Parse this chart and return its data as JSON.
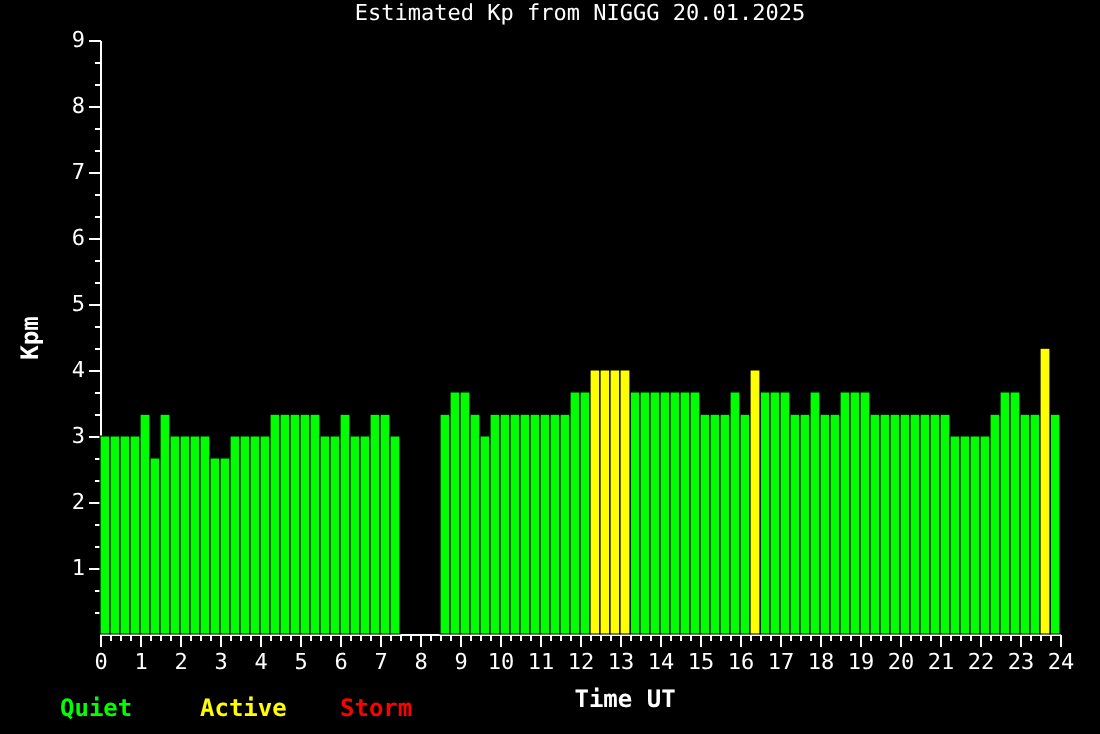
{
  "chart_data": {
    "type": "bar",
    "title": "Estimated Kp from NIGGG 20.01.2025",
    "xlabel": "Time UT",
    "ylabel": "Kpm",
    "x": [
      0,
      0.25,
      0.5,
      0.75,
      1,
      1.25,
      1.5,
      1.75,
      2,
      2.25,
      2.5,
      2.75,
      3,
      3.25,
      3.5,
      3.75,
      4,
      4.25,
      4.5,
      4.75,
      5,
      5.25,
      5.5,
      5.75,
      6,
      6.25,
      6.5,
      6.75,
      7,
      7.25,
      8.5,
      8.75,
      9,
      9.25,
      9.5,
      9.75,
      10,
      10.25,
      10.5,
      10.75,
      11,
      11.25,
      11.5,
      11.75,
      12,
      12.25,
      12.5,
      12.75,
      13,
      13.25,
      13.5,
      13.75,
      14,
      14.25,
      14.5,
      14.75,
      15,
      15.25,
      15.5,
      15.75,
      16,
      16.25,
      16.5,
      16.75,
      17,
      17.25,
      17.5,
      17.75,
      18,
      18.25,
      18.5,
      18.75,
      19,
      19.25,
      19.5,
      19.75,
      20,
      20.25,
      20.5,
      20.75,
      21,
      21.25,
      21.5,
      21.75,
      22,
      22.25,
      22.5,
      22.75,
      23,
      23.25,
      23.5,
      23.75
    ],
    "series": [
      {
        "name": "Quiet",
        "color": "#00ff00",
        "values": [
          3,
          3,
          3,
          3,
          3.33,
          2.67,
          3.33,
          3,
          3,
          3,
          3,
          2.67,
          2.67,
          3,
          3,
          3,
          3,
          3.33,
          3.33,
          3.33,
          3.33,
          3.33,
          3,
          3,
          3.33,
          3,
          3,
          3.33,
          3.33,
          3,
          3.33,
          3.67,
          3.67,
          3.33,
          3,
          3.33,
          3.33,
          3.33,
          3.33,
          3.33,
          3.33,
          3.33,
          3.33,
          3.67,
          3.67,
          null,
          null,
          null,
          null,
          3.67,
          3.67,
          3.67,
          3.67,
          3.67,
          3.67,
          3.67,
          3.33,
          3.33,
          3.33,
          3.67,
          3.33,
          null,
          3.67,
          3.67,
          3.67,
          3.33,
          3.33,
          3.67,
          3.33,
          3.33,
          3.67,
          3.67,
          3.67,
          3.33,
          3.33,
          3.33,
          3.33,
          3.33,
          3.33,
          3.33,
          3.33,
          3,
          3,
          3,
          3,
          3.33,
          3.67,
          3.67,
          3.33,
          3.33,
          null,
          3.33
        ]
      },
      {
        "name": "Active",
        "color": "#ffff00",
        "values": [
          null,
          null,
          null,
          null,
          null,
          null,
          null,
          null,
          null,
          null,
          null,
          null,
          null,
          null,
          null,
          null,
          null,
          null,
          null,
          null,
          null,
          null,
          null,
          null,
          null,
          null,
          null,
          null,
          null,
          null,
          null,
          null,
          null,
          null,
          null,
          null,
          null,
          null,
          null,
          null,
          null,
          null,
          null,
          null,
          null,
          4,
          4,
          4,
          4,
          null,
          null,
          null,
          null,
          null,
          null,
          null,
          null,
          null,
          null,
          null,
          null,
          4,
          null,
          null,
          null,
          null,
          null,
          null,
          null,
          null,
          null,
          null,
          null,
          null,
          null,
          null,
          null,
          null,
          null,
          null,
          null,
          null,
          null,
          null,
          null,
          null,
          null,
          null,
          null,
          null,
          4.33,
          null
        ]
      },
      {
        "name": "Storm",
        "color": "#ff0000",
        "values": [
          null,
          null,
          null,
          null,
          null,
          null,
          null,
          null,
          null,
          null,
          null,
          null,
          null,
          null,
          null,
          null,
          null,
          null,
          null,
          null,
          null,
          null,
          null,
          null,
          null,
          null,
          null,
          null,
          null,
          null,
          null,
          null,
          null,
          null,
          null,
          null,
          null,
          null,
          null,
          null,
          null,
          null,
          null,
          null,
          null,
          null,
          null,
          null,
          null,
          null,
          null,
          null,
          null,
          null,
          null,
          null,
          null,
          null,
          null,
          null,
          null,
          null,
          null,
          null,
          null,
          null,
          null,
          null,
          null,
          null,
          null,
          null,
          null,
          null,
          null,
          null,
          null,
          null,
          null,
          null,
          null,
          null,
          null,
          null,
          null,
          null,
          null,
          null,
          null,
          null,
          null,
          null
        ]
      }
    ],
    "xlim": [
      0,
      24
    ],
    "ylim": [
      0,
      9
    ],
    "xticks": [
      0,
      {
        "value": 0.25,
        "label": null
      },
      {
        "value": 0.5,
        "label": null
      },
      {
        "value": 0.75,
        "label": null
      },
      1,
      {
        "value": 1.25,
        "label": null
      },
      {
        "value": 1.5,
        "label": null
      },
      {
        "value": 1.75,
        "label": null
      },
      2,
      {
        "value": 2.25,
        "label": null
      },
      {
        "value": 2.5,
        "label": null
      },
      {
        "value": 2.75,
        "label": null
      },
      3,
      {
        "value": 3.25,
        "label": null
      },
      {
        "value": 3.5,
        "label": null
      },
      {
        "value": 3.75,
        "label": null
      },
      4,
      {
        "value": 4.25,
        "label": null
      },
      {
        "value": 4.5,
        "label": null
      },
      {
        "value": 4.75,
        "label": null
      },
      5,
      {
        "value": 5.25,
        "label": null
      },
      {
        "value": 5.5,
        "label": null
      },
      {
        "value": 5.75,
        "label": null
      },
      6,
      {
        "value": 6.25,
        "label": null
      },
      {
        "value": 6.5,
        "label": null
      },
      {
        "value": 6.75,
        "label": null
      },
      7,
      {
        "value": 7.25,
        "label": null
      },
      {
        "value": 7.5,
        "label": null
      },
      {
        "value": 7.75,
        "label": null
      },
      8,
      {
        "value": 8.25,
        "label": null
      },
      {
        "value": 8.5,
        "label": null
      },
      {
        "value": 8.75,
        "label": null
      },
      9,
      {
        "value": 9.25,
        "label": null
      },
      {
        "value": 9.5,
        "label": null
      },
      {
        "value": 9.75,
        "label": null
      },
      10,
      {
        "value": 10.25,
        "label": null
      },
      {
        "value": 10.5,
        "label": null
      },
      {
        "value": 10.75,
        "label": null
      },
      11,
      {
        "value": 11.25,
        "label": null
      },
      {
        "value": 11.5,
        "label": null
      },
      {
        "value": 11.75,
        "label": null
      },
      12,
      {
        "value": 12.25,
        "label": null
      },
      {
        "value": 12.5,
        "label": null
      },
      {
        "value": 12.75,
        "label": null
      },
      13,
      {
        "value": 13.25,
        "label": null
      },
      {
        "value": 13.5,
        "label": null
      },
      {
        "value": 13.75,
        "label": null
      },
      14,
      {
        "value": 14.25,
        "label": null
      },
      {
        "value": 14.5,
        "label": null
      },
      {
        "value": 14.75,
        "label": null
      },
      15,
      {
        "value": 15.25,
        "label": null
      },
      {
        "value": 15.5,
        "label": null
      },
      {
        "value": 15.75,
        "label": null
      },
      16,
      {
        "value": 16.25,
        "label": null
      },
      {
        "value": 16.5,
        "label": null
      },
      {
        "value": 16.75,
        "label": null
      },
      17,
      {
        "value": 17.25,
        "label": null
      },
      {
        "value": 17.5,
        "label": null
      },
      {
        "value": 17.75,
        "label": null
      },
      18,
      {
        "value": 18.25,
        "label": null
      },
      {
        "value": 18.5,
        "label": null
      },
      {
        "value": 18.75,
        "label": null
      },
      19,
      {
        "value": 19.25,
        "label": null
      },
      {
        "value": 19.5,
        "label": null
      },
      {
        "value": 19.75,
        "label": null
      },
      20,
      {
        "value": 20.25,
        "label": null
      },
      {
        "value": 20.5,
        "label": null
      },
      {
        "value": 20.75,
        "label": null
      },
      21,
      {
        "value": 21.25,
        "label": null
      },
      {
        "value": 21.5,
        "label": null
      },
      {
        "value": 21.75,
        "label": null
      },
      22,
      {
        "value": 22.25,
        "label": null
      },
      {
        "value": 22.5,
        "label": null
      },
      {
        "value": 22.75,
        "label": null
      },
      23,
      {
        "value": 23.25,
        "label": null
      },
      {
        "value": 23.5,
        "label": null
      },
      {
        "value": 23.75,
        "label": null
      },
      24
    ],
    "yticks": [
      {
        "value": 0.33,
        "label": null
      },
      {
        "value": 0.67,
        "label": null
      },
      1,
      {
        "value": 1.33,
        "label": null
      },
      {
        "value": 1.67,
        "label": null
      },
      2,
      {
        "value": 2.33,
        "label": null
      },
      {
        "value": 2.67,
        "label": null
      },
      3,
      {
        "value": 3.33,
        "label": null
      },
      {
        "value": 3.67,
        "label": null
      },
      4,
      {
        "value": 4.33,
        "label": null
      },
      {
        "value": 4.67,
        "label": null
      },
      5,
      {
        "value": 5.33,
        "label": null
      },
      {
        "value": 5.67,
        "label": null
      },
      6,
      {
        "value": 6.33,
        "label": null
      },
      {
        "value": 6.67,
        "label": null
      },
      7,
      {
        "value": 7.33,
        "label": null
      },
      {
        "value": 7.67,
        "label": null
      },
      8,
      {
        "value": 8.33,
        "label": null
      },
      {
        "value": 8.67,
        "label": null
      },
      9
    ],
    "legend": "bottom"
  }
}
